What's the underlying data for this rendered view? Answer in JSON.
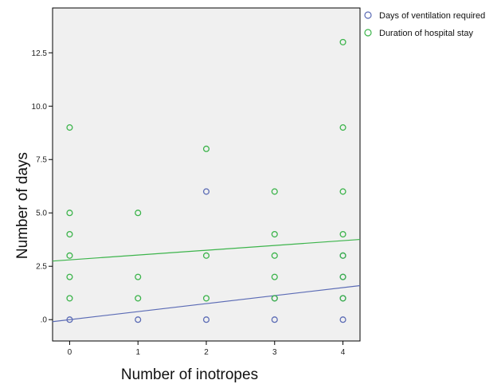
{
  "chart_data": {
    "type": "scatter",
    "xlabel": "Number of inotropes",
    "ylabel": "Number of days",
    "xlim": [
      -0.25,
      4.25
    ],
    "ylim": [
      -1.0,
      14.6
    ],
    "x_ticks": [
      0,
      1,
      2,
      3,
      4
    ],
    "x_tick_labels": [
      "0",
      "1",
      "2",
      "3",
      "4"
    ],
    "y_ticks": [
      0,
      2.5,
      5,
      7.5,
      10,
      12.5
    ],
    "y_tick_labels": [
      ".0",
      "2.5",
      "5.0",
      "7.5",
      "10.0",
      "12.5"
    ],
    "grid": false,
    "legend_position": "top-right, outside plot",
    "colors": {
      "plot_background": "#f0f0f0",
      "axis": "#000000"
    },
    "series": [
      {
        "name": "Days of ventilation required",
        "color": "#5b6bb5",
        "points": [
          [
            0,
            0
          ],
          [
            1,
            0
          ],
          [
            2,
            0
          ],
          [
            3,
            0
          ],
          [
            4,
            0
          ],
          [
            2,
            6
          ],
          [
            3,
            1
          ],
          [
            4,
            1
          ],
          [
            4,
            2
          ],
          [
            4,
            3
          ]
        ],
        "fit_line": {
          "y_at_x0": 0.0,
          "y_at_x4": 1.5
        }
      },
      {
        "name": "Duration of hospital stay",
        "color": "#3cb44b",
        "points": [
          [
            0,
            9
          ],
          [
            0,
            5
          ],
          [
            0,
            4
          ],
          [
            0,
            3
          ],
          [
            0,
            2
          ],
          [
            0,
            1
          ],
          [
            1,
            5
          ],
          [
            1,
            2
          ],
          [
            1,
            1
          ],
          [
            2,
            8
          ],
          [
            2,
            3
          ],
          [
            2,
            1
          ],
          [
            3,
            6
          ],
          [
            3,
            4
          ],
          [
            3,
            3
          ],
          [
            3,
            2
          ],
          [
            3,
            1
          ],
          [
            4,
            13
          ],
          [
            4,
            9
          ],
          [
            4,
            6
          ],
          [
            4,
            4
          ],
          [
            4,
            3
          ],
          [
            4,
            2
          ],
          [
            4,
            1
          ]
        ],
        "fit_line": {
          "y_at_x0": 2.8,
          "y_at_x4": 3.7
        }
      }
    ]
  }
}
